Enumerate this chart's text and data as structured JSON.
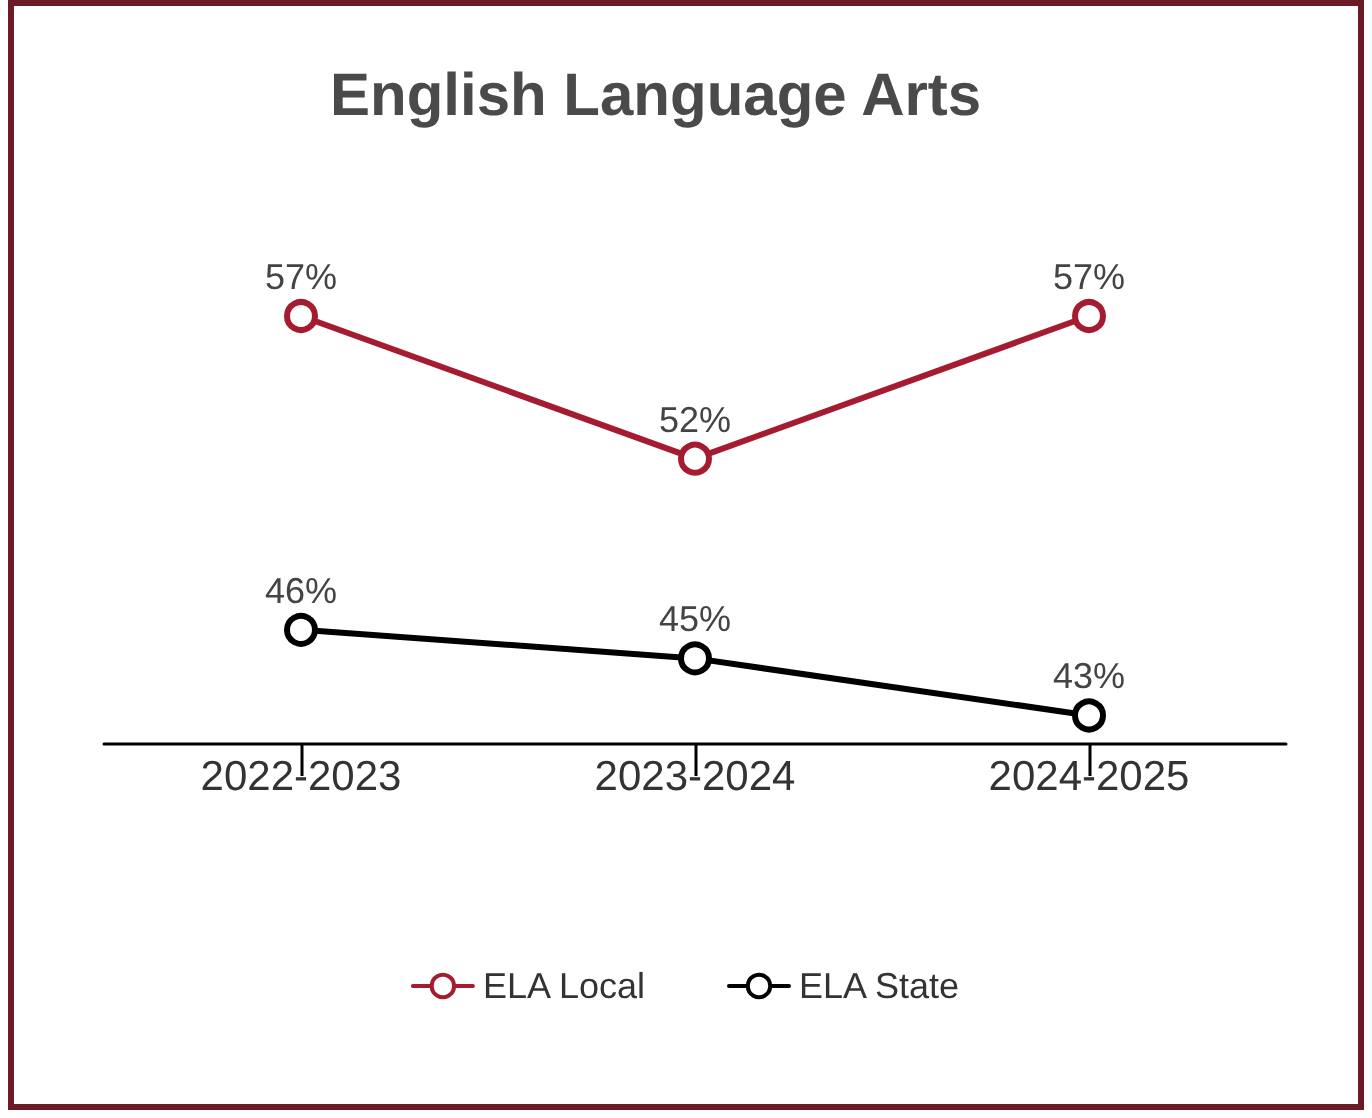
{
  "chart_data": {
    "type": "line",
    "title": "English Language Arts",
    "categories": [
      "2022-2023",
      "2023-2024",
      "2024-2025"
    ],
    "series": [
      {
        "name": "ELA Local",
        "color": "#a51c30",
        "values": [
          57,
          52,
          57
        ],
        "value_labels": [
          "57%",
          "52%",
          "57%"
        ]
      },
      {
        "name": "ELA State",
        "color": "#000000",
        "values": [
          46,
          45,
          43
        ],
        "value_labels": [
          "46%",
          "45%",
          "43%"
        ]
      }
    ],
    "grid": false,
    "legend": "bottom",
    "marker": "circle",
    "line_style": "solid"
  }
}
